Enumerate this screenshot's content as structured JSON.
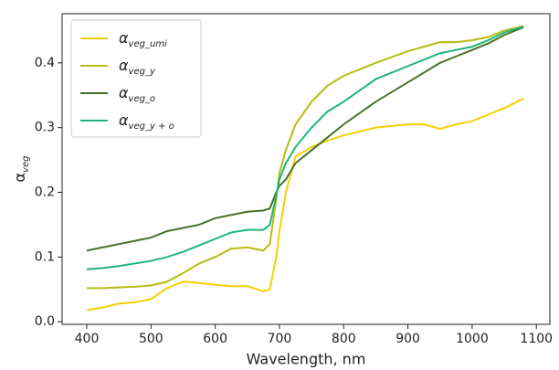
{
  "chart_data": {
    "type": "line",
    "xlabel": "Wavelength, nm",
    "ylabel": "αveg",
    "x": [
      400,
      425,
      450,
      475,
      500,
      525,
      550,
      575,
      600,
      625,
      650,
      675,
      685,
      695,
      700,
      710,
      725,
      750,
      775,
      800,
      850,
      900,
      925,
      950,
      975,
      1000,
      1025,
      1050,
      1080
    ],
    "series": [
      {
        "name": "αveg_umi",
        "color": "#f5d000",
        "values": [
          0.018,
          0.022,
          0.028,
          0.03,
          0.035,
          0.052,
          0.062,
          0.06,
          0.057,
          0.055,
          0.055,
          0.047,
          0.05,
          0.1,
          0.14,
          0.2,
          0.255,
          0.27,
          0.28,
          0.288,
          0.3,
          0.305,
          0.305,
          0.298,
          0.305,
          0.31,
          0.32,
          0.33,
          0.345
        ]
      },
      {
        "name": "αveg_y",
        "color": "#b5bd10",
        "values": [
          0.052,
          0.052,
          0.053,
          0.054,
          0.056,
          0.062,
          0.075,
          0.09,
          0.1,
          0.113,
          0.115,
          0.11,
          0.12,
          0.19,
          0.23,
          0.265,
          0.305,
          0.34,
          0.365,
          0.38,
          0.4,
          0.418,
          0.425,
          0.432,
          0.432,
          0.435,
          0.44,
          0.45,
          0.457
        ]
      },
      {
        "name": "αveg_o",
        "color": "#4a7028",
        "values": [
          0.11,
          0.115,
          0.12,
          0.125,
          0.13,
          0.14,
          0.145,
          0.15,
          0.16,
          0.165,
          0.17,
          0.172,
          0.175,
          0.2,
          0.21,
          0.22,
          0.245,
          0.265,
          0.285,
          0.305,
          0.34,
          0.37,
          0.385,
          0.4,
          0.41,
          0.42,
          0.43,
          0.443,
          0.455
        ]
      },
      {
        "name": "αveg_y + o",
        "color": "#1fb57a",
        "values": [
          0.081,
          0.083,
          0.086,
          0.09,
          0.094,
          0.1,
          0.108,
          0.118,
          0.128,
          0.138,
          0.142,
          0.142,
          0.15,
          0.195,
          0.22,
          0.245,
          0.27,
          0.3,
          0.325,
          0.34,
          0.375,
          0.395,
          0.405,
          0.415,
          0.42,
          0.425,
          0.435,
          0.447,
          0.456
        ]
      }
    ],
    "xlim": [
      361.6,
      1121
    ],
    "ylim": [
      -0.004,
      0.476
    ],
    "xticks": [
      400,
      500,
      600,
      700,
      800,
      900,
      1000,
      1100
    ],
    "yticks": [
      {
        "value": 0,
        "label": "0.0"
      },
      0.1,
      0.2,
      0.3,
      0.4
    ],
    "legend": "upper left",
    "grid": false
  }
}
